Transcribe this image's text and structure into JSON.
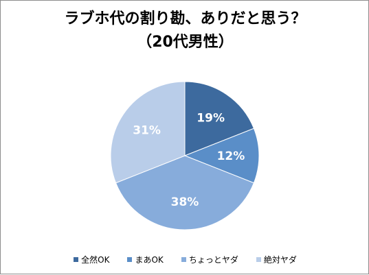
{
  "chart_data": {
    "type": "pie",
    "title": "ラブホ代の割り勘、ありだと思う？",
    "subtitle": "（20代男性）",
    "categories": [
      "全然OK",
      "まあOK",
      "ちょっとヤダ",
      "絶対ヤダ"
    ],
    "values": [
      19,
      12,
      38,
      31
    ],
    "labels": [
      "19%",
      "12%",
      "38%",
      "31%"
    ],
    "colors": [
      "#3d6a9e",
      "#5a8ec8",
      "#87acdb",
      "#b9cde9"
    ],
    "legend": "bottom"
  }
}
